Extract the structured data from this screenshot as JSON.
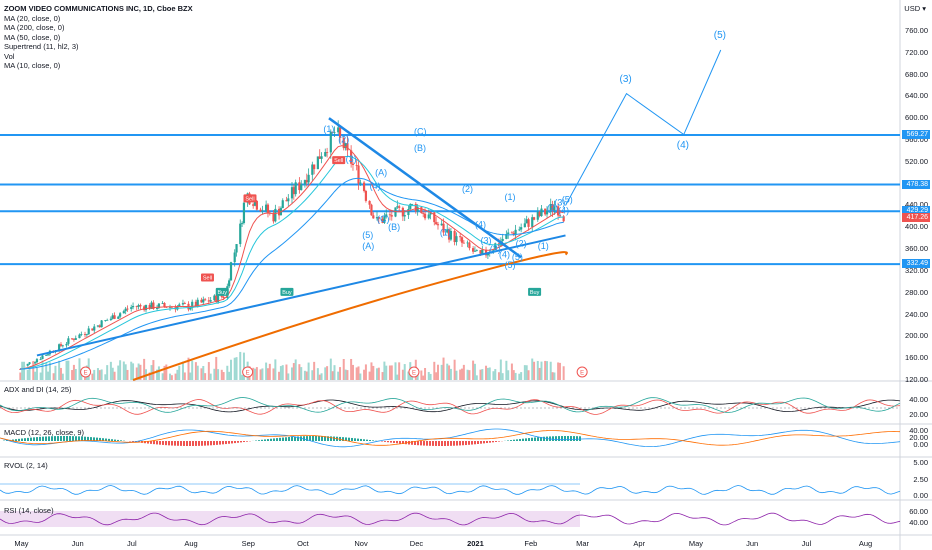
{
  "legend": {
    "title": "ZOOM VIDEO COMMUNICATIONS INC, 1D, Cboe BZX",
    "lines": [
      "MA (20, close, 0)",
      "MA (200, close, 0)",
      "MA (50, close, 0)",
      "Supertrend (11, hl2, 3)",
      "Vol",
      "MA (10, close, 0)"
    ]
  },
  "currency": "USD",
  "price_axis": [
    "760.00",
    "720.00",
    "680.00",
    "640.00",
    "600.00",
    "560.00",
    "520.00",
    "480.00",
    "440.00",
    "400.00",
    "360.00",
    "320.00",
    "280.00",
    "240.00",
    "200.00",
    "160.00",
    "120.00"
  ],
  "price_badges": [
    {
      "value": "569.27",
      "color": "#2196f3"
    },
    {
      "value": "478.38",
      "color": "#2196f3"
    },
    {
      "value": "429.29",
      "color": "#2196f3"
    },
    {
      "value": "417.26",
      "color": "#ef5350"
    },
    {
      "value": "332.49",
      "color": "#2196f3"
    }
  ],
  "indicators": {
    "adx": {
      "label": "ADX and DI (14, 25)",
      "ticks": [
        "40.00",
        "20.00"
      ]
    },
    "macd": {
      "label": "MACD (12, 26, close, 9)",
      "ticks": [
        "40.00",
        "20.00",
        "0.00"
      ]
    },
    "rvol": {
      "label": "RVOL (2, 14)",
      "ticks": [
        "5.00",
        "2.50",
        "0.00"
      ]
    },
    "rsi": {
      "label": "RSI (14, close)",
      "ticks": [
        "60.00",
        "40.00"
      ]
    }
  },
  "time_axis": [
    "May",
    "Jun",
    "Jul",
    "Aug",
    "Sep",
    "Oct",
    "Nov",
    "Dec",
    "2021",
    "Feb",
    "Mar",
    "Apr",
    "May",
    "Jun",
    "Jul",
    "Aug"
  ],
  "chart_data": {
    "type": "candlestick",
    "title": "ZOOM VIDEO COMMUNICATIONS INC, 1D, Cboe BZX",
    "ylim": [
      120,
      780
    ],
    "yscale": "linear",
    "horizontal_levels": [
      569.27,
      478.38,
      429.29,
      332.49
    ],
    "last_price": 417.26,
    "approx_path": [
      {
        "date": "2020-05-01",
        "close": 140
      },
      {
        "date": "2020-06-01",
        "close": 200
      },
      {
        "date": "2020-07-01",
        "close": 255
      },
      {
        "date": "2020-08-01",
        "close": 255
      },
      {
        "date": "2020-08-20",
        "close": 275
      },
      {
        "date": "2020-09-01",
        "close": 460
      },
      {
        "date": "2020-09-15",
        "close": 420
      },
      {
        "date": "2020-10-01",
        "close": 485
      },
      {
        "date": "2020-10-19",
        "close": 575
      },
      {
        "date": "2020-11-01",
        "close": 490
      },
      {
        "date": "2020-11-10",
        "close": 410
      },
      {
        "date": "2020-12-01",
        "close": 440
      },
      {
        "date": "2020-12-15",
        "close": 400
      },
      {
        "date": "2021-01-05",
        "close": 345
      },
      {
        "date": "2021-01-20",
        "close": 385
      },
      {
        "date": "2021-02-01",
        "close": 410
      },
      {
        "date": "2021-02-15",
        "close": 440
      },
      {
        "date": "2021-02-20",
        "close": 417.26
      }
    ],
    "projection": [
      {
        "label": "(3)",
        "date": "2021-03-25",
        "price": 645
      },
      {
        "label": "(4)",
        "date": "2021-04-25",
        "price": 570
      },
      {
        "label": "(5)",
        "date": "2021-05-15",
        "price": 725
      }
    ],
    "signals": [
      {
        "type": "Sell",
        "date": "2020-08-10"
      },
      {
        "type": "Buy",
        "date": "2020-08-18"
      },
      {
        "type": "Sell",
        "date": "2020-09-02"
      },
      {
        "type": "Buy",
        "date": "2020-09-22"
      },
      {
        "type": "Sell",
        "date": "2020-10-20"
      },
      {
        "type": "Buy",
        "date": "2021-02-03"
      }
    ],
    "wave_labels": [
      "(1)",
      "(2)",
      "(3)",
      "(4)",
      "(5)",
      "(A)",
      "(B)",
      "(C)",
      "(1)",
      "(2)",
      "(3)",
      "(4)",
      "(5)",
      "(A)",
      "(B)",
      "(C)",
      "(1)",
      "(2)",
      "(3)",
      "(4)",
      "(5)",
      "(1)",
      "(2)",
      "(3)",
      "(4)",
      "(5)"
    ],
    "earnings_markers": [
      "E",
      "E",
      "E",
      "E"
    ]
  }
}
